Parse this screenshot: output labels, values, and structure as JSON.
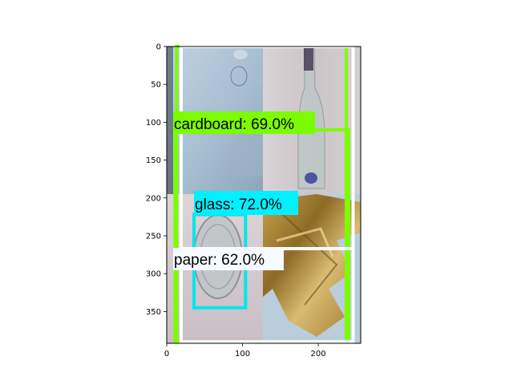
{
  "figure": {
    "x_ticks": [
      "0",
      "100",
      "200"
    ],
    "y_ticks": [
      "0",
      "50",
      "100",
      "150",
      "200",
      "250",
      "300",
      "350"
    ]
  },
  "image_tiles": [
    {
      "name": "tile-cardboard",
      "colors": [
        "#b9ccdd",
        "#a6bccf",
        "#8fa6b9"
      ]
    },
    {
      "name": "tile-bottle",
      "colors": [
        "#d6d2d4",
        "#c9c3c6",
        "#bdb6ba"
      ]
    },
    {
      "name": "tile-lid",
      "colors": [
        "#d9d0d4",
        "#cdc3c7",
        "#c2b8bd"
      ]
    },
    {
      "name": "tile-foil",
      "colors": [
        "#b58f3a",
        "#8c6a23",
        "#d4b66a"
      ]
    }
  ],
  "detections": [
    {
      "label": "cardboard: 69.0%",
      "color": "#7cfc00",
      "label_bg": "#7cfc00"
    },
    {
      "label": "glass: 72.0%",
      "color": "#00e5ee",
      "label_bg": "#00f0ff"
    },
    {
      "label": "paper: 62.0%",
      "color": "#ffffff",
      "label_bg": "#f5fbff"
    }
  ],
  "chart_data": {
    "type": "image-detections",
    "xlim": [
      0,
      256
    ],
    "ylim": [
      392,
      0
    ],
    "x_ticks": [
      0,
      100,
      200
    ],
    "y_ticks": [
      0,
      50,
      100,
      150,
      200,
      250,
      300,
      350
    ],
    "boxes": [
      {
        "label": "cardboard: 69.0%",
        "x0": 11,
        "y0": 110,
        "x1": 240,
        "y1": 390
      },
      {
        "label": "cardboard",
        "x0": 13,
        "y0": 0,
        "x1": 237,
        "y1": 390
      },
      {
        "label": "glass: 72.0%",
        "x0": 36,
        "y0": 222,
        "x1": 104,
        "y1": 345
      },
      {
        "label": "paper: 62.0%",
        "x0": 19,
        "y0": 0,
        "x1": 246,
        "y1": 267
      },
      {
        "label": "paper",
        "x0": 19,
        "y0": 267,
        "x1": 246,
        "y1": 390
      }
    ]
  }
}
